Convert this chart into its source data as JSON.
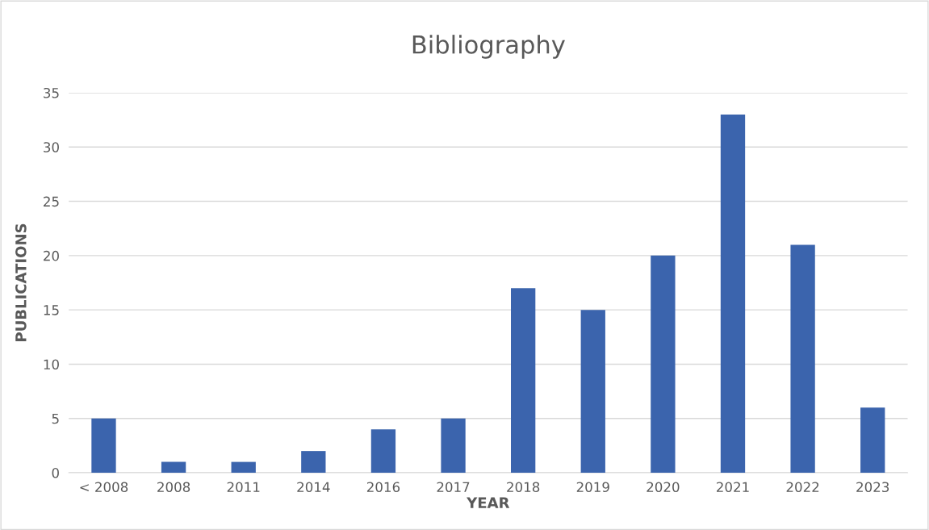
{
  "chart_data": {
    "type": "bar",
    "title": "Bibliography",
    "xlabel": "YEAR",
    "ylabel": "PUBLICATIONS",
    "categories": [
      "< 2008",
      "2008",
      "2011",
      "2014",
      "2016",
      "2017",
      "2018",
      "2019",
      "2020",
      "2021",
      "2022",
      "2023"
    ],
    "values": [
      5,
      1,
      1,
      2,
      4,
      5,
      17,
      15,
      20,
      33,
      21,
      6
    ],
    "color": "#3b64ad",
    "ylim": [
      0,
      35
    ],
    "yticks": [
      0,
      5,
      10,
      15,
      20,
      25,
      30,
      35
    ],
    "grid": "y"
  }
}
